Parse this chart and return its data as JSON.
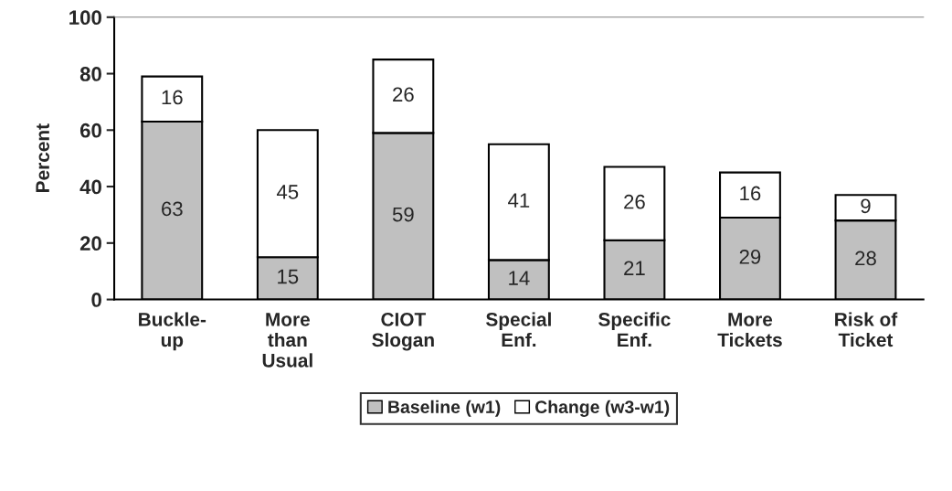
{
  "chart_data": {
    "type": "bar",
    "stacked": true,
    "ylabel": "Percent",
    "categories": [
      "Buckle-\nup",
      "More\nthan\nUsual",
      "CIOT\nSlogan",
      "Special\nEnf.",
      "Specific\nEnf.",
      "More\nTickets",
      "Risk of\nTicket"
    ],
    "series": [
      {
        "name": "Baseline (w1)",
        "color": "#c0c0c0",
        "values": [
          63,
          15,
          59,
          14,
          21,
          29,
          28
        ]
      },
      {
        "name": "Change (w3-w1)",
        "color": "#ffffff",
        "values": [
          16,
          45,
          26,
          41,
          26,
          16,
          9
        ]
      }
    ],
    "ylim": [
      0,
      100
    ],
    "yticks": [
      0,
      20,
      40,
      60,
      80,
      100
    ],
    "data_labels": true,
    "grid": false,
    "legend": "bottom"
  }
}
